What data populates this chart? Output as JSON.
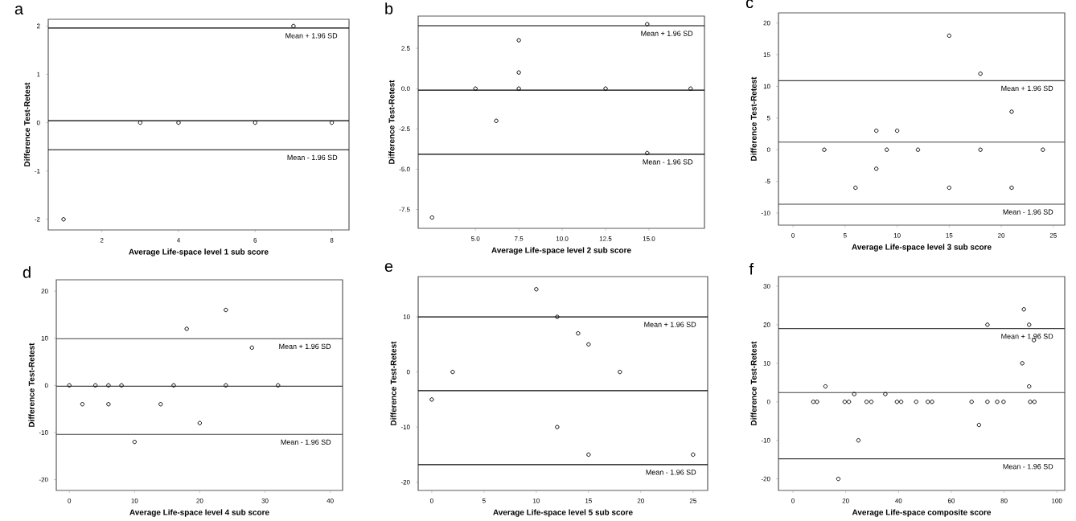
{
  "chart_data": [
    {
      "type": "scatter",
      "title": "a",
      "xlabel": "Average Life-space level 1 sub score",
      "ylabel": "Difference Test-Retest",
      "marker": "circle",
      "xlim": [
        0.6,
        8.45
      ],
      "ylim": [
        -2.22,
        2.14
      ],
      "xticks": [
        2,
        4,
        6,
        8
      ],
      "yticks": [
        -2,
        -1,
        0,
        1,
        2
      ],
      "series": [
        {
          "color": "#000000",
          "x": [
            1,
            3,
            4,
            6,
            7,
            8
          ],
          "values": [
            -2,
            0,
            0,
            0,
            2,
            0
          ]
        }
      ],
      "ref_lines": [
        {
          "axis": "y",
          "value": 1.96,
          "label": "Mean + 1.96 SD",
          "color": "#000000"
        },
        {
          "axis": "y",
          "value": 0.04,
          "color": "#000000"
        },
        {
          "axis": "y",
          "value": -0.56,
          "label": "Mean - 1.96 SD",
          "color": "#000000"
        }
      ]
    },
    {
      "type": "scatter",
      "title": "b",
      "xlabel": "Average Life-space level 2 sub score",
      "ylabel": "Difference Test-Retest",
      "marker": "circle",
      "xlim": [
        1.7,
        18.2
      ],
      "ylim": [
        -8.67,
        4.5
      ],
      "xticks": [
        {
          "value": 5,
          "label": "5.0"
        },
        7.5,
        {
          "value": 10,
          "label": "10.0"
        },
        12.5,
        {
          "value": 15,
          "label": "15.0"
        }
      ],
      "yticks": [
        -7.5,
        {
          "value": -5,
          "label": "-5.0"
        },
        -2.5,
        {
          "value": 0,
          "label": "0.0"
        },
        2.5
      ],
      "series": [
        {
          "color": "#000000",
          "x": [
            2.5,
            5,
            6.2,
            7.5,
            7.5,
            7.5,
            12.5,
            14.9,
            14.9,
            17.4
          ],
          "values": [
            -8,
            0,
            -2,
            0,
            1,
            3,
            0,
            4,
            -4,
            0
          ]
        }
      ],
      "ref_lines": [
        {
          "axis": "y",
          "value": 3.9,
          "label": "Mean + 1.96 SD",
          "color": "#000000"
        },
        {
          "axis": "y",
          "value": -0.1,
          "color": "#000000"
        },
        {
          "axis": "y",
          "value": -4.07,
          "label": "Mean - 1.96 SD",
          "color": "#000000"
        }
      ]
    },
    {
      "type": "scatter",
      "title": "c",
      "xlabel": "Average Life-space level 3 sub score",
      "ylabel": "Difference Test-Retest",
      "marker": "circle",
      "xlim": [
        -1.4,
        26.1
      ],
      "ylim": [
        -11.9,
        21.6
      ],
      "xticks": [
        0,
        5,
        10,
        15,
        20,
        25
      ],
      "yticks": [
        -10,
        -5,
        0,
        5,
        10,
        15,
        20
      ],
      "series": [
        {
          "color": "#000000",
          "x": [
            3,
            6,
            8,
            8,
            9,
            10,
            12,
            15,
            15,
            18,
            18,
            21,
            21,
            24
          ],
          "values": [
            0,
            -6,
            3,
            -3,
            0,
            3,
            0,
            18,
            -6,
            12,
            0,
            6,
            -6,
            0
          ]
        }
      ],
      "ref_lines": [
        {
          "axis": "y",
          "value": 10.9,
          "label": "Mean + 1.96 SD",
          "color": "#404040"
        },
        {
          "axis": "y",
          "value": 1.2,
          "color": "#404040"
        },
        {
          "axis": "y",
          "value": -8.6,
          "label": "Mean - 1.96 SD",
          "color": "#404040"
        }
      ]
    },
    {
      "type": "scatter",
      "title": "d",
      "xlabel": "Average Life-space level 4 sub score",
      "ylabel": "Difference Test-Retest",
      "marker": "circle",
      "xlim": [
        -2,
        41.9
      ],
      "ylim": [
        -22.3,
        22.4
      ],
      "xticks": [
        0,
        10,
        20,
        30,
        40
      ],
      "yticks": [
        -20,
        -10,
        0,
        10,
        20
      ],
      "series": [
        {
          "color": "#000000",
          "x": [
            0,
            2,
            4,
            6,
            6,
            8,
            10,
            14,
            16,
            18,
            20,
            24,
            24,
            28,
            32
          ],
          "values": [
            0,
            -4,
            0,
            0,
            -4,
            0,
            -12,
            -4,
            0,
            12,
            -8,
            16,
            0,
            8,
            0
          ]
        }
      ],
      "ref_lines": [
        {
          "axis": "y",
          "value": 9.9,
          "label": "Mean + 1.96 SD",
          "color": "#404040"
        },
        {
          "axis": "y",
          "value": -0.2,
          "color": "#404040"
        },
        {
          "axis": "y",
          "value": -10.4,
          "label": "Mean - 1.96 SD",
          "color": "#404040"
        }
      ]
    },
    {
      "type": "scatter",
      "title": "e",
      "xlabel": "Average Life-space level 5 sub score",
      "ylabel": "Difference Test-Retest",
      "marker": "circle",
      "xlim": [
        -1.3,
        26.4
      ],
      "ylim": [
        -21.5,
        17.3
      ],
      "xticks": [
        0,
        5,
        10,
        15,
        20,
        25
      ],
      "yticks": [
        -20,
        -10,
        0,
        10
      ],
      "series": [
        {
          "color": "#000000",
          "x": [
            0,
            2,
            10,
            12,
            12,
            14,
            15,
            15,
            18,
            25
          ],
          "values": [
            -5,
            0,
            15,
            10,
            -10,
            7,
            5,
            -15,
            0,
            -15
          ]
        }
      ],
      "ref_lines": [
        {
          "axis": "y",
          "value": 10,
          "label": "Mean + 1.96 SD",
          "color": "#000000"
        },
        {
          "axis": "y",
          "value": -3.4,
          "color": "#000000"
        },
        {
          "axis": "y",
          "value": -16.8,
          "label": "Mean - 1.96 SD",
          "color": "#000000"
        }
      ]
    },
    {
      "type": "scatter",
      "title": "f",
      "xlabel": "Average Life-space composite score",
      "ylabel": "Difference Test-Retest",
      "marker": "circle",
      "xlim": [
        -5.5,
        103
      ],
      "ylim": [
        -23,
        32.5
      ],
      "xticks": [
        0,
        20,
        40,
        60,
        80,
        100
      ],
      "yticks": [
        -20,
        -10,
        0,
        10,
        20,
        30
      ],
      "series": [
        {
          "color": "#000000",
          "x": [
            7.7,
            9.1,
            19.6,
            21.2,
            27.9,
            29.7,
            39.4,
            41,
            46.7,
            51.1,
            52.7,
            67.7,
            73.7,
            77.4,
            79.8,
            89.9,
            91.5,
            12.3,
            89.5,
            23.2,
            35,
            24.8,
            17.2,
            70.5,
            73.7,
            89.5,
            87.5,
            86.9,
            91.3
          ],
          "values": [
            0,
            0,
            0,
            0,
            0,
            0,
            0,
            0,
            0,
            0,
            0,
            0,
            0,
            0,
            0,
            0,
            0,
            4,
            4,
            2,
            2,
            -10,
            -20,
            -6,
            20,
            20,
            24,
            10,
            16
          ]
        }
      ],
      "ref_lines": [
        {
          "axis": "y",
          "value": 19,
          "label": "Mean + 1.96 SD",
          "color": "#404040"
        },
        {
          "axis": "y",
          "value": 2.4,
          "color": "#404040"
        },
        {
          "axis": "y",
          "value": -14.8,
          "label": "Mean - 1.96 SD",
          "color": "#404040"
        }
      ]
    }
  ]
}
